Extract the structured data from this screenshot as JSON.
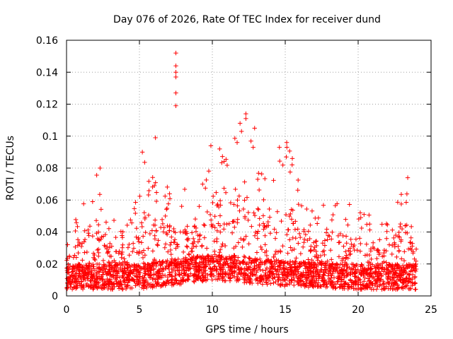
{
  "chart_data": {
    "type": "scatter",
    "title": "Day 076 of 2026, Rate Of TEC Index for receiver dund",
    "xlabel": "GPS time / hours",
    "ylabel": "ROTI / TECUs",
    "xlim": [
      0,
      25
    ],
    "ylim": [
      0,
      0.16
    ],
    "x_ticks": [
      0,
      5,
      10,
      15,
      20,
      25
    ],
    "x_tick_labels": [
      "0",
      "5",
      "10",
      "15",
      "20",
      "25"
    ],
    "y_ticks": [
      0,
      0.02,
      0.04,
      0.06,
      0.08,
      0.1,
      0.12,
      0.14,
      0.16
    ],
    "y_tick_labels": [
      "0",
      "0.02",
      "0.04",
      "0.06",
      "0.08",
      "0.1",
      "0.12",
      "0.14",
      "0.16"
    ],
    "grid": true,
    "marker": "+",
    "marker_color": "#ff0000",
    "series": [
      {
        "name": "ROTI",
        "notable_points": [
          {
            "x": 7.5,
            "y": 0.152
          },
          {
            "x": 7.5,
            "y": 0.144
          },
          {
            "x": 7.5,
            "y": 0.14
          },
          {
            "x": 7.5,
            "y": 0.137
          },
          {
            "x": 7.5,
            "y": 0.127
          },
          {
            "x": 7.5,
            "y": 0.119
          },
          {
            "x": 6.1,
            "y": 0.099
          },
          {
            "x": 12.3,
            "y": 0.114
          },
          {
            "x": 12.3,
            "y": 0.111
          },
          {
            "x": 11.9,
            "y": 0.108
          },
          {
            "x": 12.0,
            "y": 0.103
          },
          {
            "x": 12.9,
            "y": 0.105
          },
          {
            "x": 12.8,
            "y": 0.093
          },
          {
            "x": 11.7,
            "y": 0.096
          },
          {
            "x": 9.9,
            "y": 0.094
          },
          {
            "x": 10.5,
            "y": 0.092
          },
          {
            "x": 15.1,
            "y": 0.096
          },
          {
            "x": 14.6,
            "y": 0.093
          },
          {
            "x": 5.2,
            "y": 0.09
          },
          {
            "x": 2.3,
            "y": 0.08
          },
          {
            "x": 23.4,
            "y": 0.074
          }
        ],
        "envelope": [
          {
            "x": 0.2,
            "y": 0.04
          },
          {
            "x": 1.0,
            "y": 0.063
          },
          {
            "x": 2.3,
            "y": 0.08
          },
          {
            "x": 3.0,
            "y": 0.05
          },
          {
            "x": 4.0,
            "y": 0.04
          },
          {
            "x": 5.3,
            "y": 0.089
          },
          {
            "x": 6.5,
            "y": 0.068
          },
          {
            "x": 8.0,
            "y": 0.07
          },
          {
            "x": 9.0,
            "y": 0.065
          },
          {
            "x": 10.0,
            "y": 0.094
          },
          {
            "x": 11.0,
            "y": 0.09
          },
          {
            "x": 12.3,
            "y": 0.114
          },
          {
            "x": 13.5,
            "y": 0.075
          },
          {
            "x": 14.5,
            "y": 0.085
          },
          {
            "x": 15.1,
            "y": 0.096
          },
          {
            "x": 16.2,
            "y": 0.069
          },
          {
            "x": 17.0,
            "y": 0.05
          },
          {
            "x": 18.0,
            "y": 0.064
          },
          {
            "x": 19.0,
            "y": 0.06
          },
          {
            "x": 20.0,
            "y": 0.054
          },
          {
            "x": 21.0,
            "y": 0.052
          },
          {
            "x": 22.0,
            "y": 0.045
          },
          {
            "x": 22.5,
            "y": 0.062
          },
          {
            "x": 23.4,
            "y": 0.074
          },
          {
            "x": 24.0,
            "y": 0.03
          }
        ],
        "baseline": [
          {
            "x": 0,
            "y": 0.012
          },
          {
            "x": 5,
            "y": 0.012
          },
          {
            "x": 10,
            "y": 0.018
          },
          {
            "x": 15,
            "y": 0.014
          },
          {
            "x": 20,
            "y": 0.012
          },
          {
            "x": 24,
            "y": 0.012
          }
        ]
      }
    ]
  }
}
